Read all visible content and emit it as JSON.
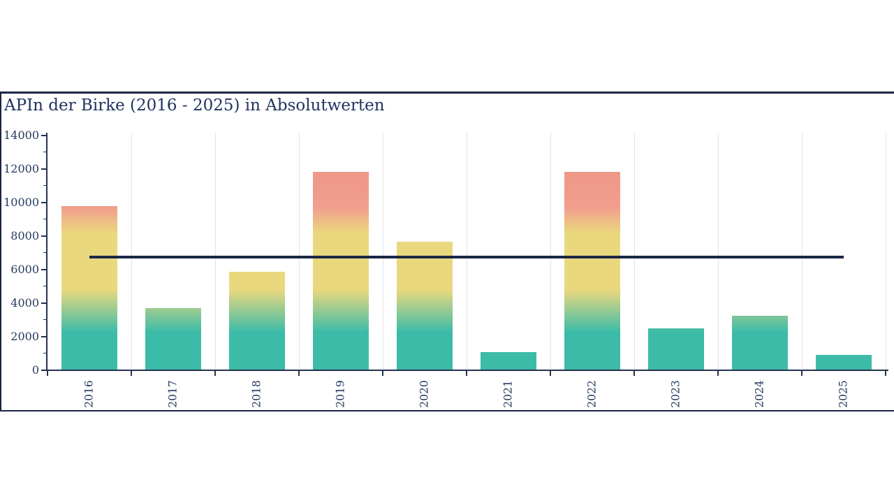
{
  "page": {
    "background": "#ffffff",
    "title": "APIn der Birke (2016 - 2025) in Absolutwerten"
  },
  "chart_data": {
    "type": "bar",
    "title": "APIn der Birke (2016 - 2025) in Absolutwerten",
    "categories": [
      "2016",
      "2017",
      "2018",
      "2019",
      "2020",
      "2021",
      "2022",
      "2023",
      "2024",
      "2025"
    ],
    "values": [
      9780,
      3690,
      5860,
      11830,
      7640,
      1080,
      11830,
      2460,
      3220,
      900
    ],
    "reference_line_value": 6720,
    "xlabel": "",
    "ylabel": "",
    "ylim": [
      0,
      14000
    ],
    "yticks": [
      0,
      2000,
      4000,
      6000,
      8000,
      10000,
      12000,
      14000
    ],
    "ytick_minor_step": 1000,
    "xtick_label_rotation_deg": 90,
    "grid": "vertical lines at category boundaries",
    "legend": "none",
    "bar_gradient_bottom_to_top": [
      "#3cbca8",
      "#ead87e",
      "#f19e8d",
      "#ec9181"
    ],
    "colors": {
      "axis": "#24324f",
      "tick_text": "#253a5e",
      "title_text": "#1f3460",
      "grid": "#e4e4e4",
      "reference_line": "#1b2846",
      "card_border": "#1a2642",
      "background": "#ffffff"
    }
  }
}
